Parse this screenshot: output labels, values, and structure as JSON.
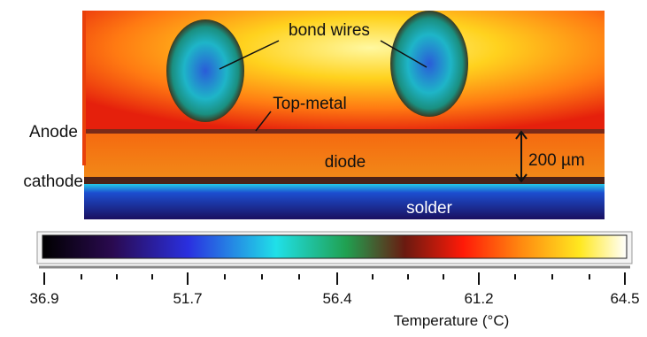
{
  "image": {
    "labels": {
      "anode": "Anode",
      "cathode": "cathode"
    },
    "annotations": {
      "bond_wires": "bond wires",
      "top_metal": "Top-metal",
      "diode": "diode",
      "scale": "200 µm",
      "solder": "solder"
    }
  },
  "colorbar": {
    "ticks": [
      "36.9",
      "51.7",
      "56.4",
      "61.2",
      "64.5"
    ],
    "label": "Temperature (°C)"
  }
}
